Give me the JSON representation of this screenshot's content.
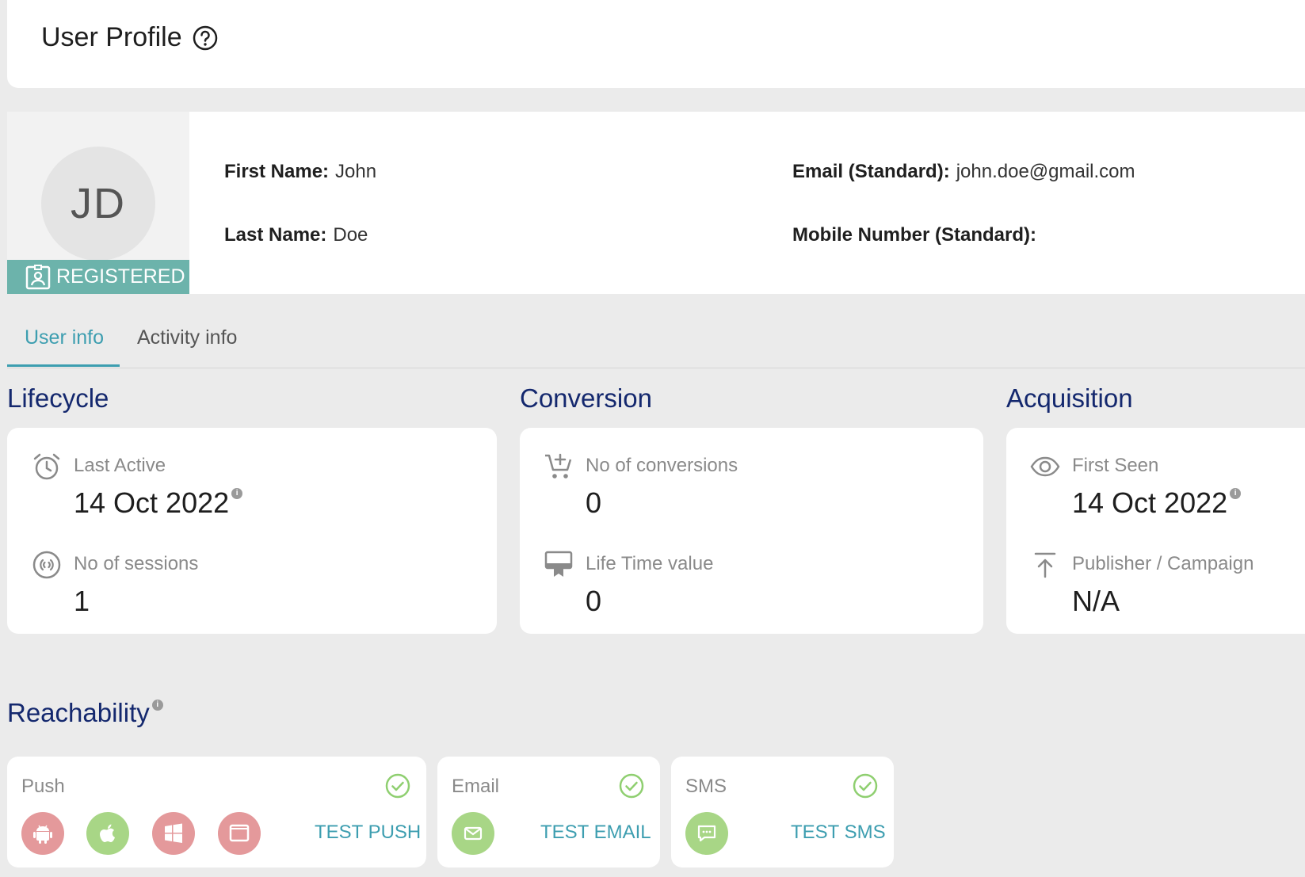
{
  "header": {
    "title": "User Profile"
  },
  "profile": {
    "initials": "JD",
    "status_badge": "REGISTERED",
    "first_name_label": "First Name:",
    "first_name": "John",
    "last_name_label": "Last Name:",
    "last_name": "Doe",
    "email_label": "Email (Standard):",
    "email": "john.doe@gmail.com",
    "mobile_label": "Mobile Number (Standard):",
    "mobile": ""
  },
  "tabs": [
    {
      "label": "User info",
      "active": true
    },
    {
      "label": "Activity info",
      "active": false
    }
  ],
  "lifecycle": {
    "title": "Lifecycle",
    "last_active_label": "Last Active",
    "last_active_value": "14 Oct 2022",
    "sessions_label": "No of sessions",
    "sessions_value": "1"
  },
  "conversion": {
    "title": "Conversion",
    "conversions_label": "No of conversions",
    "conversions_value": "0",
    "ltv_label": "Life Time value",
    "ltv_value": "0"
  },
  "acquisition": {
    "title": "Acquisition",
    "first_seen_label": "First Seen",
    "first_seen_value": "14 Oct 2022",
    "publisher_label": "Publisher / Campaign",
    "publisher_value": "N/A"
  },
  "reachability": {
    "title": "Reachability",
    "push": {
      "title": "Push",
      "button": "TEST PUSH"
    },
    "email": {
      "title": "Email",
      "button": "TEST EMAIL"
    },
    "sms": {
      "title": "SMS",
      "button": "TEST SMS"
    }
  },
  "colors": {
    "accent": "#3d9eb0",
    "section_title": "#14286e",
    "badge": "#6cb3ab",
    "channel_disabled": "#e4999b",
    "channel_enabled": "#a8d686",
    "check": "#8fcf70"
  },
  "icons": {
    "help": "question-circle-icon",
    "badge": "id-badge-icon",
    "last_active": "alarm-clock-icon",
    "sessions": "signal-icon",
    "conversions": "cart-plus-icon",
    "ltv": "register-icon",
    "first_seen": "eye-icon",
    "publisher": "upload-arrow-icon",
    "push_android": "android-icon",
    "push_ios": "apple-icon",
    "push_windows": "windows-icon",
    "push_web": "browser-icon",
    "email_channel": "envelope-icon",
    "sms_channel": "chat-bubble-icon",
    "status": "check-circle-icon"
  }
}
